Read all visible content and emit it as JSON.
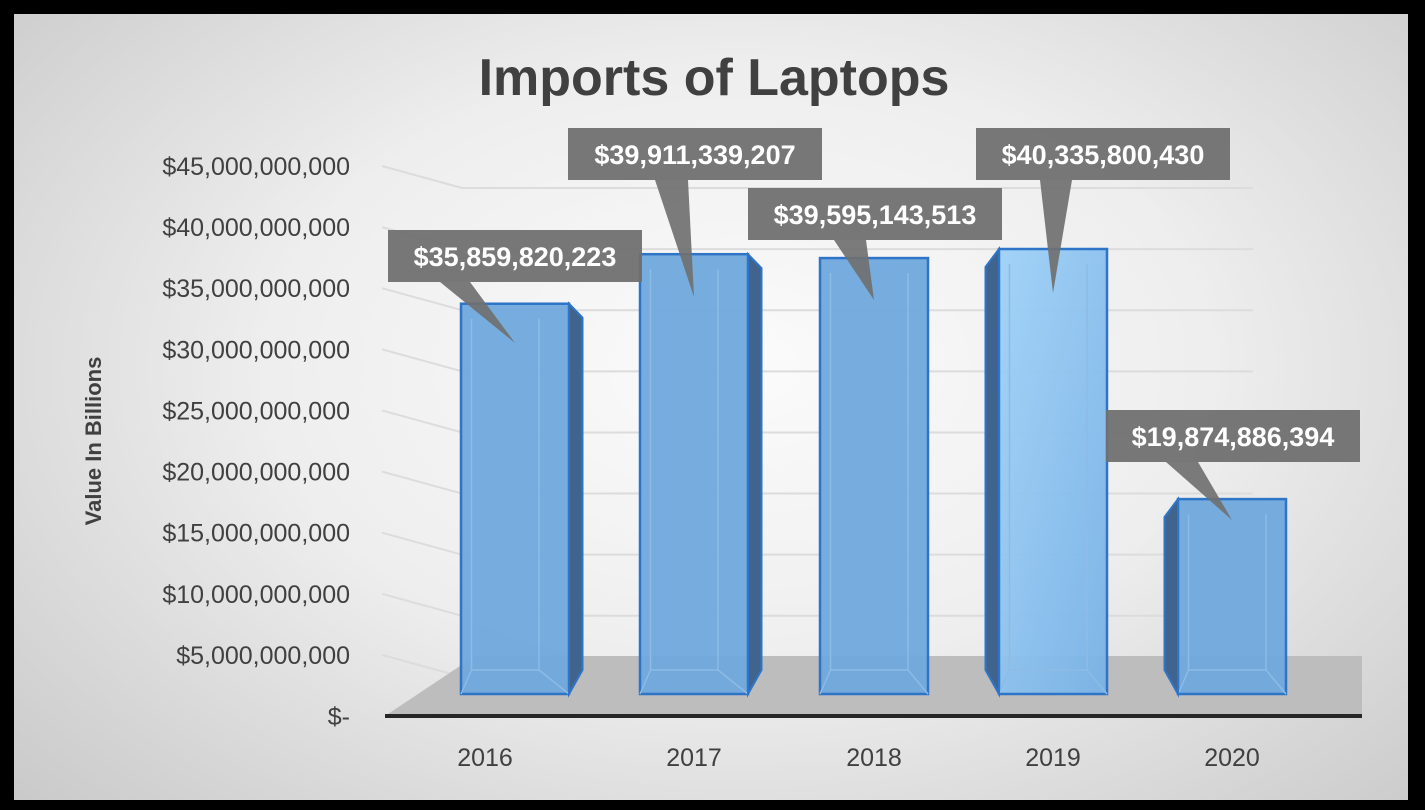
{
  "chart_data": {
    "type": "bar",
    "title": "Imports of Laptops",
    "ylabel": "Value In Billions",
    "xlabel": "",
    "categories": [
      "2016",
      "2017",
      "2018",
      "2019",
      "2020"
    ],
    "values": [
      35859820223,
      39911339207,
      39595143513,
      40335800430,
      19874886394
    ],
    "data_labels": [
      "$35,859,820,223",
      "$39,911,339,207",
      "$39,595,143,513",
      "$40,335,800,430",
      "$19,874,886,394"
    ],
    "ylim": [
      0,
      45000000000
    ],
    "y_ticks": [
      0,
      5000000000,
      10000000000,
      15000000000,
      20000000000,
      25000000000,
      30000000000,
      35000000000,
      40000000000,
      45000000000
    ],
    "y_tick_labels": [
      "$-",
      "$5,000,000,000",
      "$10,000,000,000",
      "$15,000,000,000",
      "$20,000,000,000",
      "$25,000,000,000",
      "$30,000,000,000",
      "$35,000,000,000",
      "$40,000,000,000",
      "$45,000,000,000"
    ],
    "grid": true,
    "style": "3d-column",
    "colors": {
      "bar_front": "#6fa8dc",
      "bar_front_light": "#9ccff5",
      "bar_edge": "#2e75c8",
      "bar_side": "#41648f",
      "callout_fill": "#707070",
      "title_text": "#404040",
      "floor": "#bdbdbd",
      "axis_line": "#262626"
    }
  }
}
